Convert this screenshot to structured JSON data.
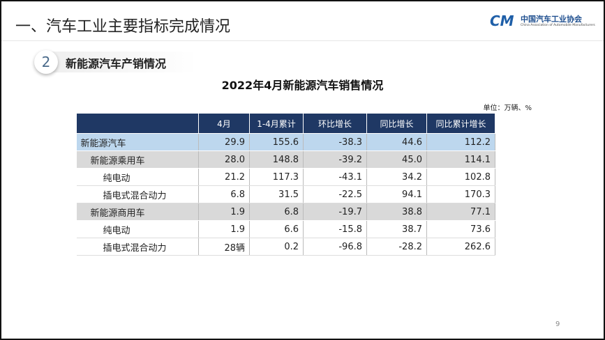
{
  "header": {
    "title": "一、汽车工业主要指标完成情况",
    "logo_name": "中国汽车工业协会",
    "logo_subtitle": "China Association of Automobile Manufacturers"
  },
  "section": {
    "number": "2",
    "title": "新能源汽车产销情况"
  },
  "table": {
    "title": "2022年4月新能源汽车销售情况",
    "unit": "单位：万辆、%",
    "columns": [
      "4月",
      "1-4月累计",
      "环比增长",
      "同比增长",
      "同比累计增长"
    ],
    "rows": [
      [
        "新能源汽车",
        "29.9",
        "155.6",
        "-38.3",
        "44.6",
        "112.2"
      ],
      [
        "新能源乘用车",
        "28.0",
        "148.8",
        "-39.2",
        "45.0",
        "114.1"
      ],
      [
        "纯电动",
        "21.2",
        "117.3",
        "-43.1",
        "34.2",
        "102.8"
      ],
      [
        "插电式混合动力",
        "6.8",
        "31.5",
        "-22.5",
        "94.1",
        "170.3"
      ],
      [
        "新能源商用车",
        "1.9",
        "6.8",
        "-19.7",
        "38.8",
        "77.1"
      ],
      [
        "纯电动",
        "1.9",
        "6.6",
        "-15.8",
        "38.7",
        "73.6"
      ],
      [
        "插电式混合动力",
        "28辆",
        "0.2",
        "-96.8",
        "-28.2",
        "262.6"
      ]
    ]
  },
  "page_number": "9"
}
